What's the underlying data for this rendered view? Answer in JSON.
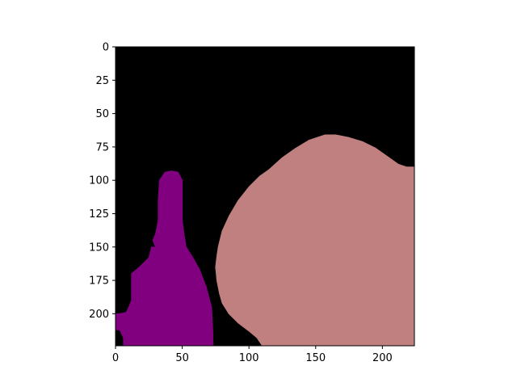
{
  "chart_data": {
    "type": "heatmap",
    "kind": "segmentation-mask",
    "title": "",
    "xlabel": "",
    "ylabel": "",
    "xlim": [
      0,
      224
    ],
    "ylim": [
      224,
      0
    ],
    "x_ticks": [
      0,
      50,
      100,
      150,
      200
    ],
    "y_ticks": [
      0,
      25,
      50,
      75,
      100,
      125,
      150,
      175,
      200
    ],
    "grid": false,
    "legend": "none",
    "background_color": "#000000",
    "regions": [
      {
        "color": "#800080",
        "outline": [
          [
            0,
            200
          ],
          [
            3,
            200
          ],
          [
            8,
            199
          ],
          [
            10,
            195
          ],
          [
            12,
            190
          ],
          [
            12,
            180
          ],
          [
            12,
            170
          ],
          [
            18,
            165
          ],
          [
            25,
            158
          ],
          [
            27,
            150
          ],
          [
            30,
            150
          ],
          [
            28,
            145
          ],
          [
            30,
            140
          ],
          [
            32,
            130
          ],
          [
            32,
            115
          ],
          [
            33,
            100
          ],
          [
            37,
            94
          ],
          [
            42,
            93
          ],
          [
            47,
            94
          ],
          [
            50,
            100
          ],
          [
            50,
            115
          ],
          [
            50,
            130
          ],
          [
            51,
            138
          ],
          [
            53,
            150
          ],
          [
            58,
            158
          ],
          [
            63,
            167
          ],
          [
            68,
            180
          ],
          [
            72,
            195
          ],
          [
            73,
            215
          ],
          [
            73,
            224
          ],
          [
            6,
            224
          ],
          [
            6,
            218
          ],
          [
            3,
            212
          ],
          [
            0,
            212
          ]
        ]
      },
      {
        "color": "#c08080",
        "outline": [
          [
            110,
            224
          ],
          [
            106,
            218
          ],
          [
            100,
            213
          ],
          [
            92,
            207
          ],
          [
            85,
            200
          ],
          [
            80,
            192
          ],
          [
            78,
            185
          ],
          [
            76,
            175
          ],
          [
            75,
            165
          ],
          [
            76,
            157
          ],
          [
            77,
            150
          ],
          [
            80,
            138
          ],
          [
            85,
            127
          ],
          [
            92,
            115
          ],
          [
            100,
            105
          ],
          [
            108,
            97
          ],
          [
            115,
            92
          ],
          [
            125,
            83
          ],
          [
            135,
            76
          ],
          [
            140,
            73
          ],
          [
            145,
            70
          ],
          [
            157,
            66
          ],
          [
            165,
            66
          ],
          [
            175,
            68
          ],
          [
            185,
            71
          ],
          [
            195,
            76
          ],
          [
            205,
            83
          ],
          [
            212,
            88
          ],
          [
            218,
            90
          ],
          [
            224,
            90
          ],
          [
            224,
            224
          ]
        ]
      }
    ]
  }
}
